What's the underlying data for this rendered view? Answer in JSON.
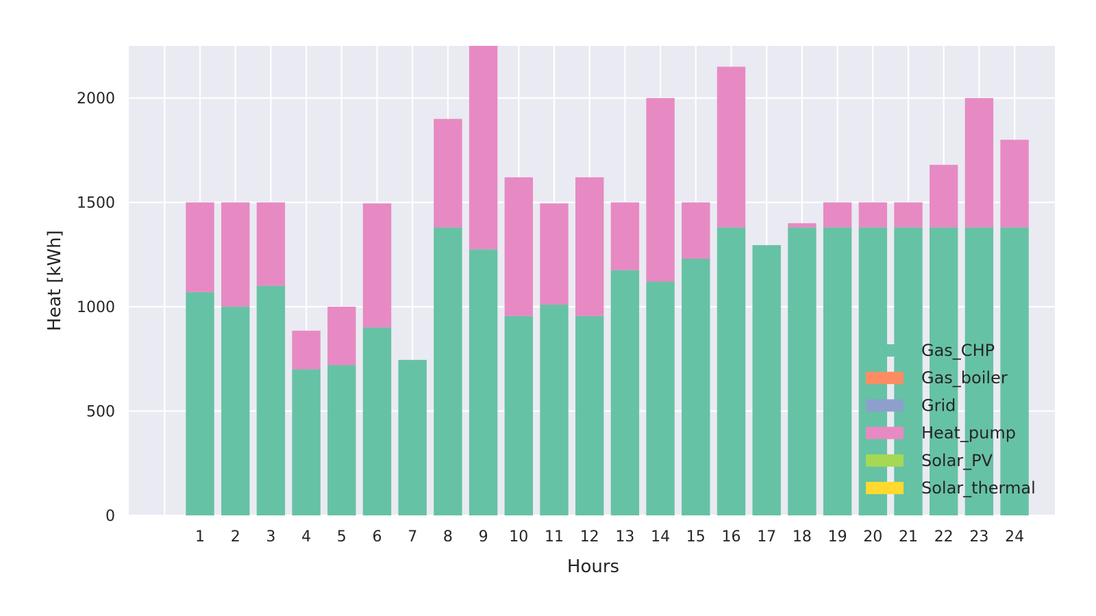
{
  "chart_data": {
    "type": "bar",
    "stacked": true,
    "title": "",
    "xlabel": "Hours",
    "ylabel": "Heat [kWh]",
    "categories": [
      "1",
      "2",
      "3",
      "4",
      "5",
      "6",
      "7",
      "8",
      "9",
      "10",
      "11",
      "12",
      "13",
      "14",
      "15",
      "16",
      "17",
      "18",
      "19",
      "20",
      "21",
      "22",
      "23",
      "24"
    ],
    "ylim": [
      0,
      2250
    ],
    "yticks": [
      0,
      500,
      1000,
      1500,
      2000
    ],
    "grid": true,
    "legend_position": "lower-right",
    "series": [
      {
        "name": "Gas_CHP",
        "color": "#66c2a5",
        "values": [
          1070,
          1000,
          1100,
          700,
          720,
          900,
          745,
          1380,
          1275,
          955,
          1010,
          955,
          1175,
          1120,
          1230,
          1380,
          1295,
          1380,
          1380,
          1380,
          1380,
          1380,
          1380,
          1380
        ]
      },
      {
        "name": "Gas_boiler",
        "color": "#fc8d62",
        "values": [
          0,
          0,
          0,
          0,
          0,
          0,
          0,
          0,
          0,
          0,
          0,
          0,
          0,
          0,
          0,
          0,
          0,
          0,
          0,
          0,
          0,
          0,
          0,
          0
        ]
      },
      {
        "name": "Grid",
        "color": "#8da0cb",
        "values": [
          0,
          0,
          0,
          0,
          0,
          0,
          0,
          0,
          0,
          0,
          0,
          0,
          0,
          0,
          0,
          0,
          0,
          0,
          0,
          0,
          0,
          0,
          0,
          0
        ]
      },
      {
        "name": "Heat_pump",
        "color": "#e78ac3",
        "values": [
          430,
          500,
          400,
          185,
          280,
          595,
          0,
          520,
          975,
          665,
          485,
          665,
          325,
          880,
          270,
          770,
          0,
          20,
          120,
          120,
          120,
          300,
          620,
          420
        ]
      },
      {
        "name": "Solar_PV",
        "color": "#a6d854",
        "values": [
          0,
          0,
          0,
          0,
          0,
          0,
          0,
          0,
          0,
          0,
          0,
          0,
          0,
          0,
          0,
          0,
          0,
          0,
          0,
          0,
          0,
          0,
          0,
          0
        ]
      },
      {
        "name": "Solar_thermal",
        "color": "#ffd92f",
        "values": [
          0,
          0,
          0,
          0,
          0,
          0,
          0,
          0,
          0,
          0,
          0,
          0,
          0,
          0,
          0,
          0,
          0,
          0,
          0,
          0,
          0,
          0,
          0,
          0
        ]
      }
    ]
  }
}
